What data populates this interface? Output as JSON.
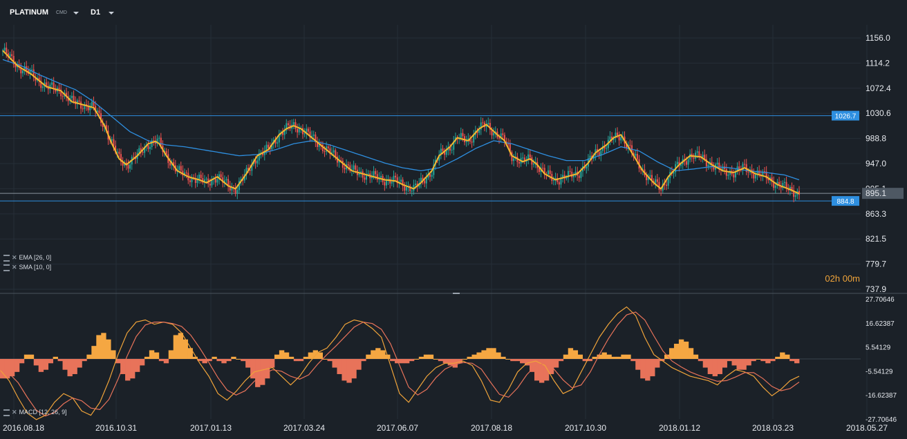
{
  "toolbar": {
    "symbol": "PLATINUM",
    "type": "CMD",
    "timeframe": "D1"
  },
  "countdown": "02h 00m",
  "indicators": {
    "ema": "EMA  [26, 0]",
    "sma": "SMA  [10, 0]",
    "macd": "MACD  [12, 26, 9]"
  },
  "colors": {
    "background": "#1b2128",
    "up_candle": "#26a69a",
    "down_candle": "#ef5350",
    "ema": "#2e8fe0",
    "sma": "#f5b82e",
    "hline": "#2e8fe0",
    "macd_pos": "#f5a742",
    "macd_neg": "#e8735a"
  },
  "chart_data": [
    {
      "type": "candlestick",
      "price_axis_ticks": [
        "1156.0",
        "1114.2",
        "1072.4",
        "1030.6",
        "988.8",
        "947.0",
        "905.1",
        "863.3",
        "821.5",
        "779.7",
        "737.9"
      ],
      "ylim": [
        737.9,
        1156.0
      ],
      "date_ticks": [
        "2016.08.18",
        "2016.10.31",
        "2017.01.13",
        "2017.03.24",
        "2017.06.07",
        "2017.08.18",
        "2017.10.30",
        "2018.01.12",
        "2018.03.23",
        "2018.05.27"
      ],
      "current_price": "895.1",
      "horizontal_lines": [
        {
          "label": "1026.7",
          "value": 1026.7
        },
        {
          "label": "884.8",
          "value": 884.8
        }
      ],
      "close_path": [
        [
          0,
          1135
        ],
        [
          8,
          1110
        ],
        [
          16,
          1095
        ],
        [
          24,
          1075
        ],
        [
          32,
          1068
        ],
        [
          38,
          1050
        ],
        [
          44,
          1045
        ],
        [
          50,
          1040
        ],
        [
          56,
          1010
        ],
        [
          60,
          980
        ],
        [
          64,
          955
        ],
        [
          68,
          945
        ],
        [
          74,
          960
        ],
        [
          80,
          980
        ],
        [
          85,
          985
        ],
        [
          90,
          960
        ],
        [
          96,
          935
        ],
        [
          102,
          925
        ],
        [
          108,
          920
        ],
        [
          112,
          915
        ],
        [
          118,
          925
        ],
        [
          124,
          910
        ],
        [
          128,
          905
        ],
        [
          134,
          930
        ],
        [
          140,
          960
        ],
        [
          146,
          970
        ],
        [
          152,
          995
        ],
        [
          156,
          1005
        ],
        [
          160,
          1010
        ],
        [
          164,
          1005
        ],
        [
          168,
          995
        ],
        [
          172,
          985
        ],
        [
          176,
          975
        ],
        [
          182,
          960
        ],
        [
          188,
          945
        ],
        [
          192,
          935
        ],
        [
          198,
          930
        ],
        [
          204,
          925
        ],
        [
          210,
          920
        ],
        [
          216,
          918
        ],
        [
          220,
          912
        ],
        [
          226,
          905
        ],
        [
          230,
          915
        ],
        [
          236,
          935
        ],
        [
          240,
          960
        ],
        [
          246,
          975
        ],
        [
          250,
          990
        ],
        [
          256,
          985
        ],
        [
          262,
          1005
        ],
        [
          266,
          1012
        ],
        [
          272,
          995
        ],
        [
          276,
          985
        ],
        [
          280,
          960
        ],
        [
          286,
          950
        ],
        [
          290,
          955
        ],
        [
          294,
          945
        ],
        [
          298,
          930
        ],
        [
          304,
          920
        ],
        [
          310,
          925
        ],
        [
          316,
          930
        ],
        [
          322,
          948
        ],
        [
          326,
          965
        ],
        [
          332,
          978
        ],
        [
          336,
          990
        ],
        [
          340,
          995
        ],
        [
          344,
          975
        ],
        [
          348,
          955
        ],
        [
          352,
          935
        ],
        [
          358,
          915
        ],
        [
          362,
          905
        ],
        [
          366,
          925
        ],
        [
          372,
          945
        ],
        [
          378,
          960
        ],
        [
          384,
          958
        ],
        [
          390,
          945
        ],
        [
          396,
          935
        ],
        [
          402,
          932
        ],
        [
          408,
          940
        ],
        [
          414,
          930
        ],
        [
          420,
          925
        ],
        [
          426,
          912
        ],
        [
          432,
          905
        ],
        [
          438,
          897
        ]
      ],
      "ema_path": [
        [
          0,
          1120
        ],
        [
          10,
          1110
        ],
        [
          20,
          1095
        ],
        [
          30,
          1082
        ],
        [
          40,
          1070
        ],
        [
          50,
          1050
        ],
        [
          60,
          1025
        ],
        [
          70,
          1000
        ],
        [
          80,
          985
        ],
        [
          90,
          978
        ],
        [
          100,
          975
        ],
        [
          110,
          970
        ],
        [
          120,
          965
        ],
        [
          130,
          960
        ],
        [
          140,
          962
        ],
        [
          150,
          970
        ],
        [
          160,
          980
        ],
        [
          170,
          985
        ],
        [
          180,
          978
        ],
        [
          190,
          968
        ],
        [
          200,
          958
        ],
        [
          210,
          948
        ],
        [
          220,
          940
        ],
        [
          230,
          935
        ],
        [
          240,
          940
        ],
        [
          250,
          955
        ],
        [
          260,
          972
        ],
        [
          270,
          985
        ],
        [
          280,
          980
        ],
        [
          290,
          970
        ],
        [
          300,
          960
        ],
        [
          310,
          952
        ],
        [
          320,
          952
        ],
        [
          330,
          962
        ],
        [
          340,
          975
        ],
        [
          350,
          968
        ],
        [
          360,
          950
        ],
        [
          370,
          935
        ],
        [
          380,
          938
        ],
        [
          390,
          942
        ],
        [
          400,
          940
        ],
        [
          410,
          935
        ],
        [
          420,
          932
        ],
        [
          430,
          928
        ],
        [
          438,
          920
        ]
      ]
    },
    {
      "type": "bar",
      "title": "MACD  [12, 26, 9]",
      "yticks": [
        "27.70646",
        "16.62387",
        "5.54129",
        "-5.54129",
        "-16.62387",
        "-27.70646"
      ],
      "ylim": [
        -27.70646,
        27.70646
      ],
      "histogram": [
        -9,
        -9,
        -8,
        -6,
        -2,
        2,
        2,
        -3,
        -6,
        -5,
        -2,
        1,
        -1,
        -5,
        -8,
        -7,
        -4,
        -1,
        2,
        6,
        11,
        12,
        9,
        4,
        -2,
        -7,
        -10,
        -9,
        -6,
        -3,
        1,
        4,
        3,
        -1,
        -2,
        4,
        11,
        12,
        9,
        5,
        1,
        -1,
        -2,
        -1,
        1,
        -1,
        -2,
        -1,
        1,
        0,
        -1,
        -4,
        -9,
        -13,
        -12,
        -9,
        -4,
        2,
        4,
        3,
        1,
        -1,
        -1,
        1,
        3,
        4,
        3,
        0,
        -1,
        -4,
        -7,
        -10,
        -11,
        -9,
        -5,
        -1,
        2,
        4,
        5,
        4,
        2,
        -1,
        -2,
        -2,
        -2,
        -1,
        0,
        1,
        2,
        2,
        0,
        -1,
        -2,
        -3,
        -4,
        -2,
        0,
        1,
        2,
        3,
        4,
        5,
        5,
        3,
        1,
        0,
        -1,
        -1,
        -2,
        -3,
        -6,
        -10,
        -11,
        -10,
        -7,
        -4,
        -1,
        2,
        5,
        4,
        2,
        -1,
        -1,
        1,
        2,
        3,
        2,
        1,
        1,
        2,
        2,
        -1,
        -5,
        -9,
        -10,
        -8,
        -4,
        -1,
        2,
        5,
        7,
        9,
        8,
        5,
        2,
        -1,
        -4,
        -7,
        -8,
        -7,
        -4,
        -1,
        -3,
        -5,
        -5,
        -3,
        -1,
        0,
        -1,
        -2,
        -1,
        1,
        3,
        2,
        -1,
        -2
      ],
      "macd_line": [
        -5,
        -10,
        -18,
        -25,
        -28,
        -26,
        -20,
        -16,
        -18,
        -24,
        -26,
        -20,
        -10,
        2,
        12,
        17,
        18,
        16,
        17,
        16,
        12,
        5,
        -2,
        -8,
        -16,
        -19,
        -15,
        -10,
        -6,
        -5,
        -4,
        -8,
        -12,
        -8,
        -2,
        3,
        5,
        10,
        16,
        18,
        17,
        14,
        10,
        -3,
        -16,
        -20,
        -14,
        -8,
        -4,
        -2,
        -2,
        -1,
        -3,
        -10,
        -19,
        -20,
        -14,
        -6,
        -2,
        -1,
        -3,
        -10,
        -16,
        -14,
        -6,
        2,
        10,
        16,
        21,
        24,
        20,
        10,
        2,
        -1,
        -4,
        -6,
        -8,
        -9,
        -10,
        -12,
        -8,
        -5,
        -6,
        -8,
        -13,
        -17,
        -14,
        -10,
        -8
      ]
    }
  ]
}
